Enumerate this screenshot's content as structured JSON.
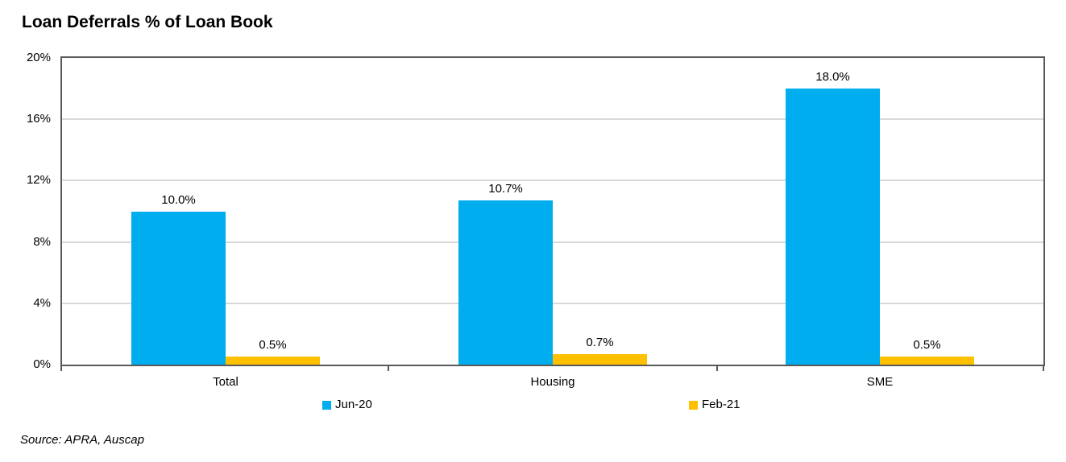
{
  "title": "Loan Deferrals % of Loan Book",
  "source_note": "Source: APRA, Auscap",
  "colors": {
    "series_jun20": "#00AEEF",
    "series_feb21": "#FFC000",
    "axis": "#595959",
    "gridline": "#D9D9D9",
    "text": "#000000",
    "background": "#FFFFFF"
  },
  "chart_data": {
    "type": "bar",
    "title": "Loan Deferrals % of Loan Book",
    "categories": [
      "Total",
      "Housing",
      "SME"
    ],
    "series": [
      {
        "name": "Jun-20",
        "color": "#00AEEF",
        "values": [
          10.0,
          10.7,
          18.0
        ],
        "data_labels": [
          "10.0%",
          "10.7%",
          "18.0%"
        ]
      },
      {
        "name": "Feb-21",
        "color": "#FFC000",
        "values": [
          0.5,
          0.7,
          0.5
        ],
        "data_labels": [
          "0.5%",
          "0.7%",
          "0.5%"
        ]
      }
    ],
    "ylim": [
      0,
      20
    ],
    "y_ticks": [
      {
        "value": 0,
        "label": "0%"
      },
      {
        "value": 4,
        "label": "4%"
      },
      {
        "value": 8,
        "label": "8%"
      },
      {
        "value": 12,
        "label": "12%"
      },
      {
        "value": 16,
        "label": "16%"
      },
      {
        "value": 20,
        "label": "20%"
      }
    ],
    "grid": true,
    "legend_position": "bottom",
    "xlabel": "",
    "ylabel": ""
  }
}
